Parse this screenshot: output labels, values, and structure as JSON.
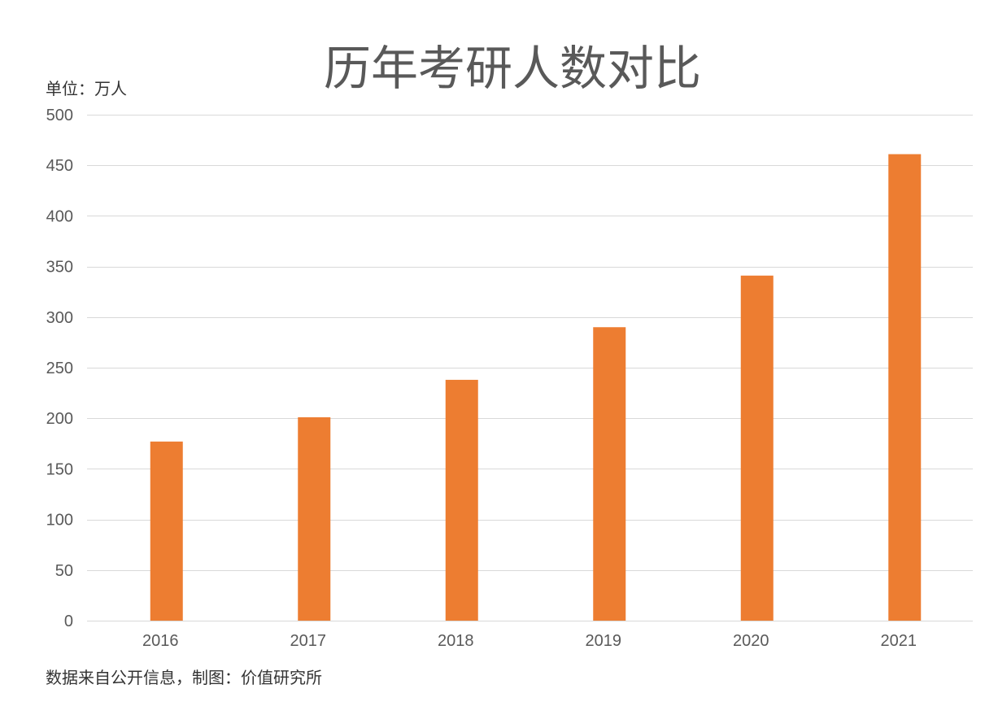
{
  "chart_data": {
    "type": "bar",
    "title": "历年考研人数对比",
    "unit_label": "单位：万人",
    "source_note": "数据来自公开信息，制图：价值研究所",
    "categories": [
      "2016",
      "2017",
      "2018",
      "2019",
      "2020",
      "2021"
    ],
    "values": [
      177,
      201,
      238,
      290,
      341,
      461
    ],
    "ylim": [
      0,
      500
    ],
    "yticks": [
      0,
      50,
      100,
      150,
      200,
      250,
      300,
      350,
      400,
      450,
      500
    ],
    "grid": true,
    "legend": "none",
    "bar_color": "#ED7D31",
    "gridline_color": "#d9d9d9"
  }
}
